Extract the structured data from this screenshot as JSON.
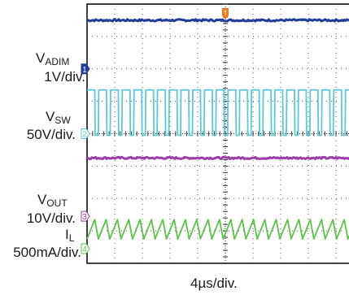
{
  "chart_data": {
    "type": "line",
    "xlabel": "4µs/div.",
    "x_divisions": 10,
    "y_divisions": 8,
    "grid": true,
    "trigger_marker": "T",
    "series": [
      {
        "channel_tag": "1",
        "name_base": "V",
        "name_sub": "ADIM",
        "scale_label": "1V/div.",
        "color": "#1f3d9a",
        "shape": "flat",
        "level_div": 7.5,
        "ground_marker_div": 6.0,
        "noise_div": 0.03
      },
      {
        "channel_tag": "2",
        "name_base": "V",
        "name_sub": "SW",
        "scale_label": "50V/div.",
        "color": "#5fc8d6",
        "shape": "square",
        "high_div": 5.35,
        "low_div": 3.95,
        "ground_marker_div": 4.0,
        "period_div": 0.41,
        "low_fraction": 0.32
      },
      {
        "channel_tag": "3",
        "name_base": "V",
        "name_sub": "OUT",
        "scale_label": "10V/div.",
        "color": "#9b3da6",
        "shape": "flat",
        "level_div": 3.25,
        "ground_marker_div": 1.45,
        "noise_div": 0.03
      },
      {
        "channel_tag": "4",
        "name_base": "I",
        "name_sub": "L",
        "scale_label": "500mA/div.",
        "color": "#5cc24a",
        "shape": "triangle",
        "high_div": 1.35,
        "low_div": 0.75,
        "ground_marker_div": 0.45,
        "period_div": 0.41,
        "rise_fraction": 0.68
      }
    ]
  },
  "colors": {
    "trigger": "#f07a1a",
    "grid": "#555555",
    "frame": "#000000"
  }
}
